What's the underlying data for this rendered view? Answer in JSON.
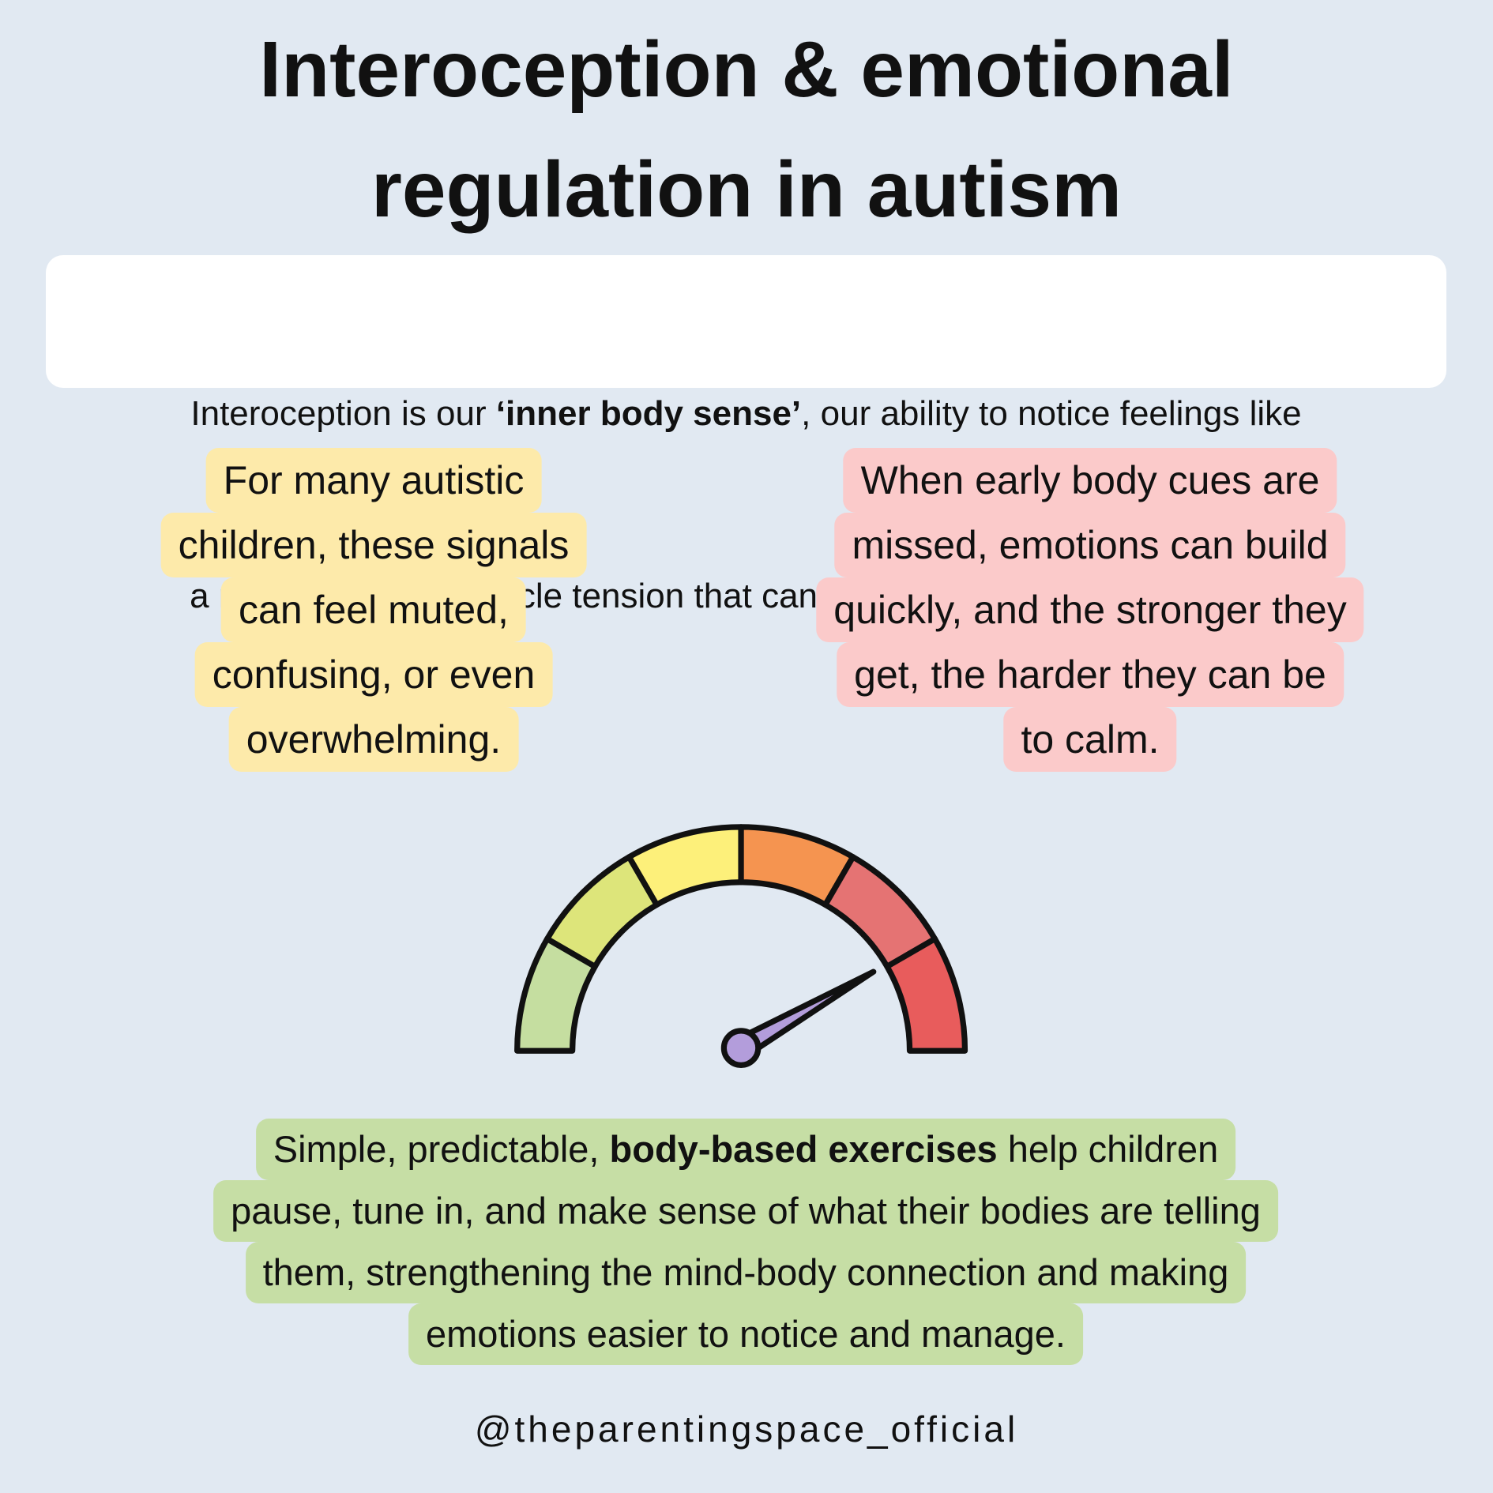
{
  "title": {
    "lines": [
      "Interoception & emotional",
      "regulation in autism"
    ]
  },
  "intro": {
    "line1": [
      "Interoception is our ",
      "‘inner body sense’",
      ", our ability to notice feelings like"
    ],
    "line2": "a racing heart or muscle tension that can signal early emotional distress."
  },
  "left_box": {
    "lines": [
      "For many autistic",
      "children, these signals",
      "can feel muted,",
      "confusing, or even",
      "overwhelming."
    ]
  },
  "right_box": {
    "lines": [
      "When early body cues are",
      "missed, emotions can build",
      "quickly, and the stronger they",
      "get, the harder they can be",
      "to calm."
    ]
  },
  "bottom_box": {
    "line1": [
      "Simple, predictable, ",
      "body-based exercises",
      " help children"
    ],
    "lines": [
      "pause, tune in, and make sense of what their bodies are telling",
      "them, strengthening the mind-body connection and making",
      "emotions easier to notice and manage."
    ]
  },
  "handle": "@theparentingspace_official"
}
